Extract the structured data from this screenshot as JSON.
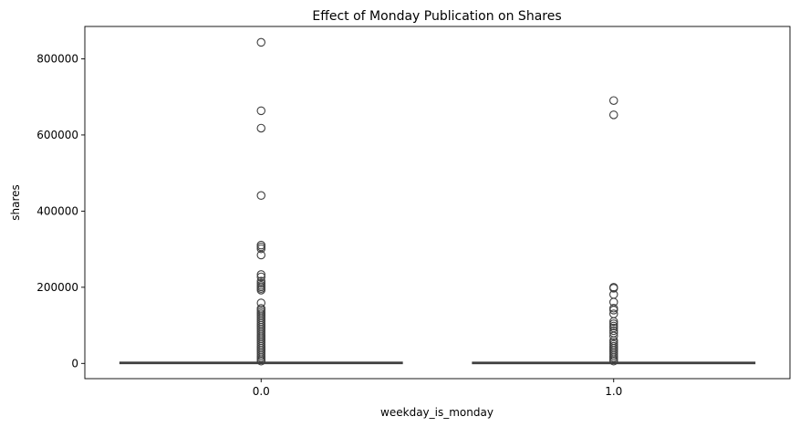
{
  "chart_data": {
    "type": "box",
    "title": "Effect of Monday Publication on Shares",
    "xlabel": "weekday_is_monday",
    "ylabel": "shares",
    "categories": [
      "0.0",
      "1.0"
    ],
    "ylim": [
      -40000,
      885000
    ],
    "yticks": [
      0,
      200000,
      400000,
      600000,
      800000
    ],
    "ytick_labels": [
      "0",
      "200000",
      "400000",
      "600000",
      "800000"
    ],
    "grid": false,
    "boxes": [
      {
        "category": "0.0",
        "min": 1,
        "q1": 946,
        "median": 1400,
        "q3": 2800,
        "max": 5600,
        "outliers": [
          843300,
          663600,
          617900,
          441000,
          310800,
          306100,
          301000,
          284700,
          233400,
          227300,
          216000,
          210300,
          205000,
          201000,
          196700,
          192500,
          158900,
          144400,
          140000,
          135000,
          130000,
          125000,
          120000,
          115000,
          110000,
          105000,
          100000,
          95000,
          90000,
          85000,
          80000,
          75000,
          70000,
          65000,
          60000,
          55000,
          50000,
          45000,
          40000,
          35000,
          30000,
          25000,
          20000,
          15000,
          10000,
          6000
        ]
      },
      {
        "category": "1.0",
        "min": 1,
        "q1": 919,
        "median": 1400,
        "q3": 2700,
        "max": 5400,
        "outliers": [
          690400,
          652900,
          200000,
          197600,
          181000,
          161000,
          145000,
          140000,
          130000,
          110000,
          104000,
          98000,
          93000,
          86000,
          80000,
          72000,
          60000,
          55000,
          50000,
          45000,
          40000,
          35000,
          30000,
          25000,
          20000,
          15000,
          10000,
          6000
        ]
      }
    ]
  }
}
